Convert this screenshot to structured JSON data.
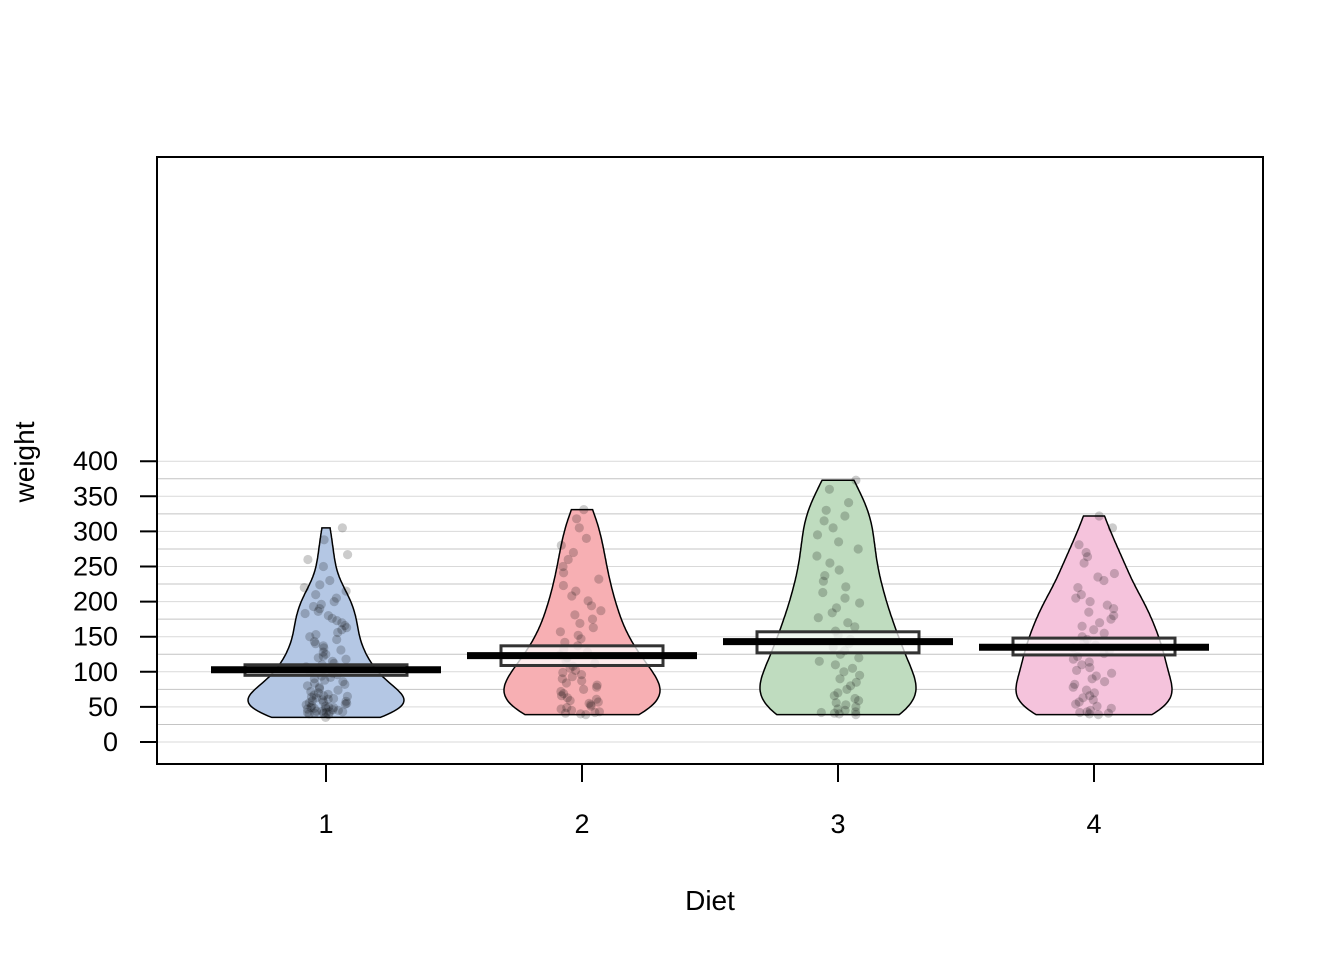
{
  "chart_data": {
    "type": "pirate",
    "xlabel": "Diet",
    "ylabel": "weight",
    "categories": [
      "1",
      "2",
      "3",
      "4"
    ],
    "ylim": [
      0,
      410
    ],
    "yticks": [
      0,
      50,
      100,
      150,
      200,
      250,
      300,
      350,
      400
    ],
    "grid": true,
    "groups": [
      {
        "name": "1",
        "color": "#b4c7e4",
        "mean": 103,
        "ci": [
          95,
          110
        ],
        "min": 35,
        "max": 305,
        "points": [
          35,
          39,
          40,
          41,
          41,
          42,
          42,
          43,
          43,
          44,
          44,
          45,
          46,
          47,
          48,
          48,
          49,
          49,
          50,
          51,
          52,
          53,
          54,
          55,
          56,
          57,
          58,
          59,
          60,
          61,
          62,
          63,
          64,
          65,
          66,
          67,
          68,
          70,
          72,
          74,
          76,
          78,
          80,
          82,
          84,
          86,
          88,
          90,
          92,
          94,
          96,
          98,
          100,
          101,
          103,
          105,
          107,
          110,
          112,
          115,
          118,
          120,
          122,
          125,
          128,
          131,
          134,
          137,
          140,
          143,
          146,
          150,
          153,
          156,
          160,
          163,
          166,
          170,
          173,
          176,
          180,
          183,
          186,
          190,
          193,
          196,
          200,
          205,
          210,
          215,
          220,
          224,
          230,
          250,
          260,
          267,
          288,
          305
        ]
      },
      {
        "name": "2",
        "color": "#f7afb3",
        "mean": 123,
        "ci": [
          109,
          137
        ],
        "min": 39,
        "max": 331,
        "points": [
          39,
          40,
          41,
          42,
          43,
          45,
          47,
          49,
          51,
          53,
          55,
          57,
          59,
          61,
          63,
          66,
          69,
          72,
          75,
          78,
          81,
          84,
          87,
          90,
          93,
          96,
          99,
          102,
          105,
          108,
          112,
          116,
          120,
          124,
          128,
          132,
          137,
          142,
          147,
          152,
          157,
          163,
          169,
          175,
          181,
          187,
          194,
          201,
          208,
          215,
          223,
          232,
          241,
          250,
          260,
          270,
          280,
          290,
          305,
          318,
          331
        ]
      },
      {
        "name": "3",
        "color": "#bfdcbf",
        "mean": 143,
        "ci": [
          127,
          157
        ],
        "min": 39,
        "max": 373,
        "points": [
          39,
          40,
          41,
          42,
          43,
          45,
          47,
          50,
          53,
          56,
          59,
          62,
          66,
          70,
          75,
          80,
          85,
          90,
          95,
          100,
          105,
          110,
          115,
          120,
          125,
          130,
          135,
          140,
          146,
          152,
          158,
          164,
          170,
          177,
          184,
          191,
          198,
          205,
          213,
          221,
          229,
          237,
          245,
          255,
          265,
          275,
          285,
          295,
          305,
          315,
          322,
          330,
          341,
          360,
          373
        ]
      },
      {
        "name": "4",
        "color": "#f5c3dc",
        "mean": 135,
        "ci": [
          124,
          148
        ],
        "min": 39,
        "max": 322,
        "points": [
          39,
          40,
          41,
          42,
          43,
          45,
          48,
          51,
          54,
          57,
          60,
          63,
          66,
          70,
          74,
          78,
          82,
          86,
          90,
          94,
          98,
          102,
          106,
          110,
          114,
          118,
          122,
          126,
          130,
          134,
          138,
          142,
          146,
          150,
          155,
          160,
          165,
          170,
          175,
          180,
          185,
          190,
          195,
          200,
          205,
          210,
          220,
          230,
          235,
          240,
          255,
          264,
          270,
          281,
          305,
          322
        ]
      }
    ]
  }
}
